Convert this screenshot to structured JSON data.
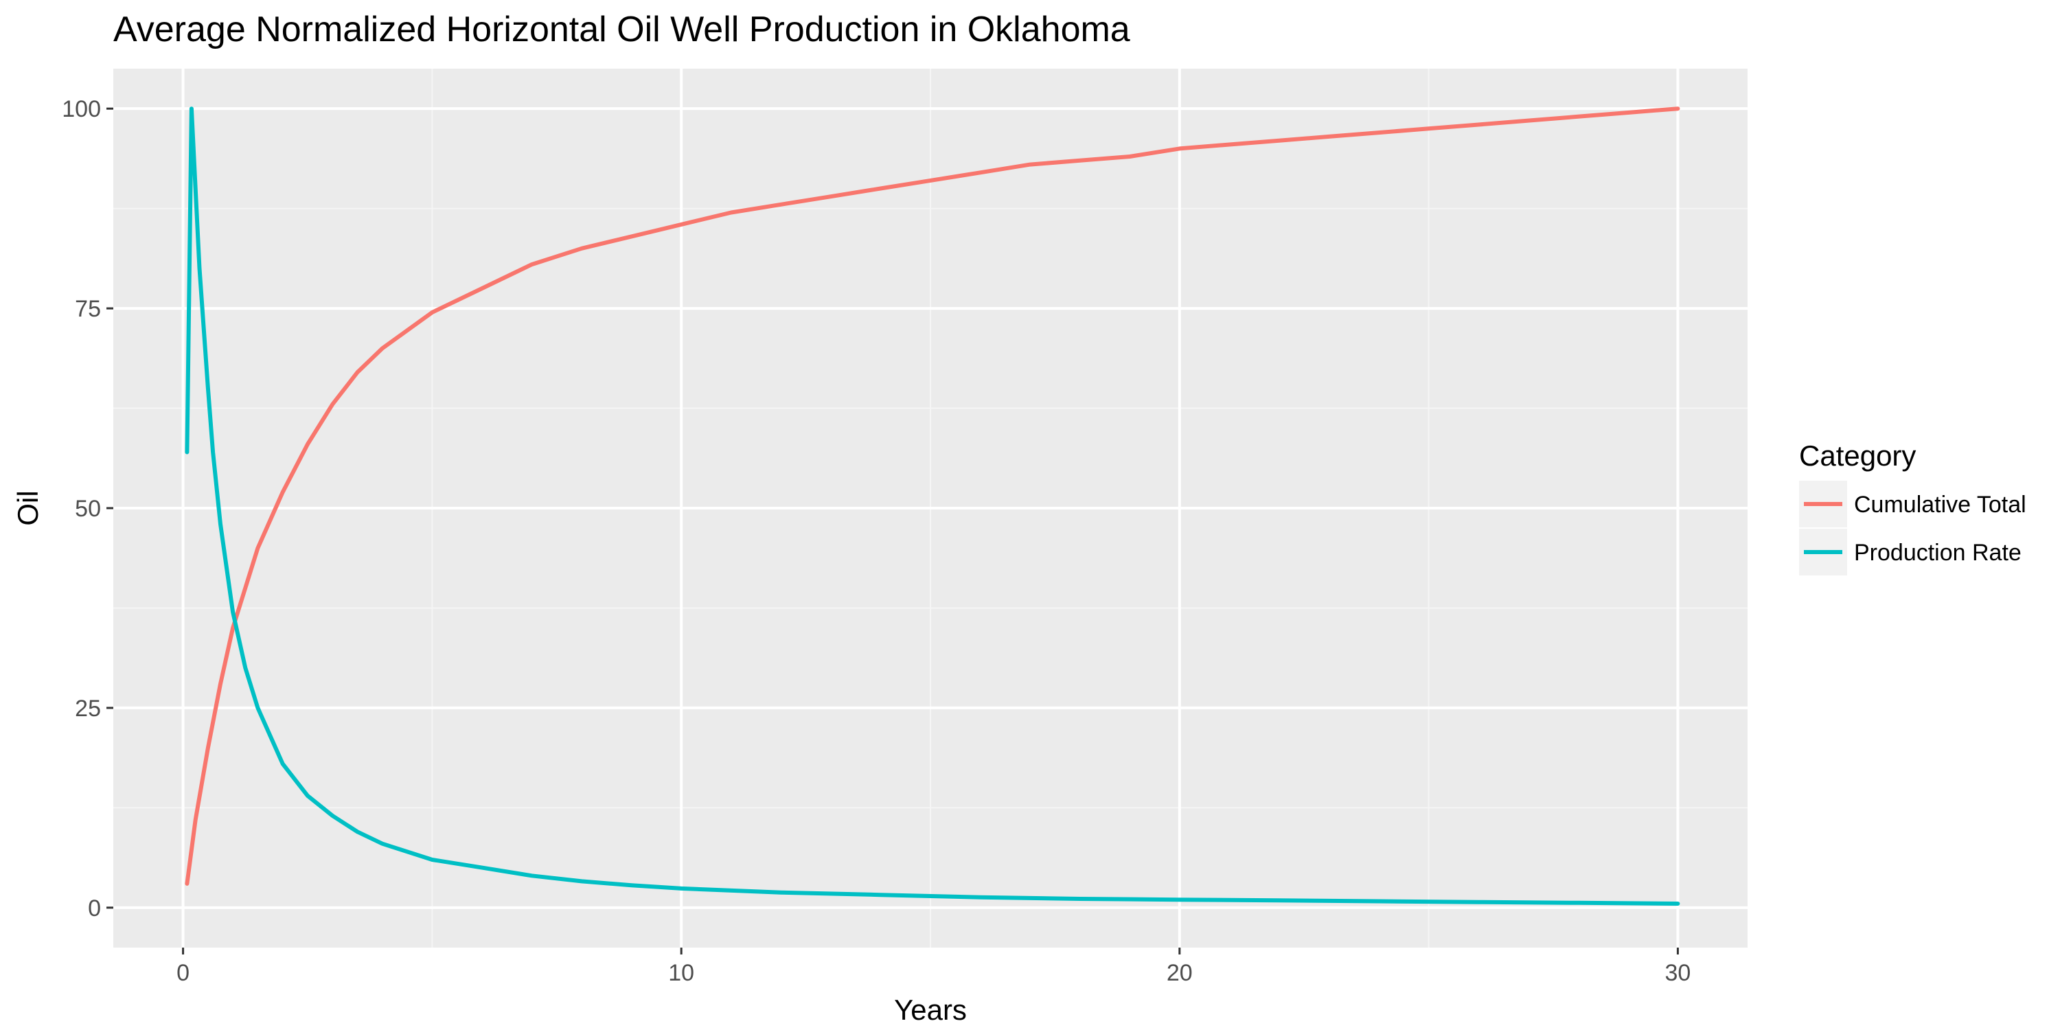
{
  "chart_data": {
    "type": "line",
    "title": "Average Normalized Horizontal Oil Well Production in Oklahoma",
    "xlabel": "Years",
    "ylabel": "Oil",
    "xlim": [
      -1.4,
      31.4
    ],
    "ylim": [
      -5,
      105
    ],
    "x_ticks": [
      0,
      10,
      20,
      30
    ],
    "x_tick_labels": [
      "0",
      "10",
      "20",
      "30"
    ],
    "y_ticks": [
      0,
      25,
      50,
      75,
      100
    ],
    "y_tick_labels": [
      "0",
      "25",
      "50",
      "75",
      "100"
    ],
    "grid": true,
    "legend": {
      "title": "Category",
      "placement": "right",
      "entries": [
        {
          "label": "Cumulative Total",
          "color": "#F8766D"
        },
        {
          "label": "Production Rate",
          "color": "#00BFC4"
        }
      ]
    },
    "series": [
      {
        "name": "Cumulative Total",
        "color": "#F8766D",
        "x": [
          0.08,
          0.25,
          0.5,
          0.75,
          1,
          1.5,
          2,
          2.5,
          3,
          3.5,
          4,
          5,
          6,
          7,
          8,
          9,
          10,
          11,
          12,
          13,
          14,
          15,
          16,
          17,
          18,
          19,
          20,
          21,
          22,
          23,
          24,
          25,
          26,
          27,
          28,
          29,
          30
        ],
        "values": [
          3,
          11,
          20,
          28,
          35,
          45,
          52,
          58,
          63,
          67,
          70,
          74.5,
          77.5,
          80.5,
          82.5,
          84,
          85.5,
          87,
          88,
          89,
          90,
          91,
          92,
          93,
          93.5,
          94,
          95,
          95.5,
          96,
          96.5,
          97,
          97.5,
          98,
          98.5,
          99,
          99.5,
          100
        ]
      },
      {
        "name": "Production Rate",
        "color": "#00BFC4",
        "x": [
          0.08,
          0.17,
          0.25,
          0.33,
          0.42,
          0.5,
          0.6,
          0.75,
          1,
          1.25,
          1.5,
          2,
          2.5,
          3,
          3.5,
          4,
          5,
          6,
          7,
          8,
          9,
          10,
          12,
          14,
          16,
          18,
          20,
          22,
          24,
          26,
          28,
          30
        ],
        "values": [
          57,
          100,
          90,
          80,
          72,
          65,
          57,
          48,
          37,
          30,
          25,
          18,
          14,
          11.5,
          9.5,
          8,
          6,
          5,
          4,
          3.3,
          2.8,
          2.4,
          1.9,
          1.6,
          1.3,
          1.1,
          1,
          0.9,
          0.8,
          0.7,
          0.6,
          0.5
        ]
      }
    ]
  }
}
